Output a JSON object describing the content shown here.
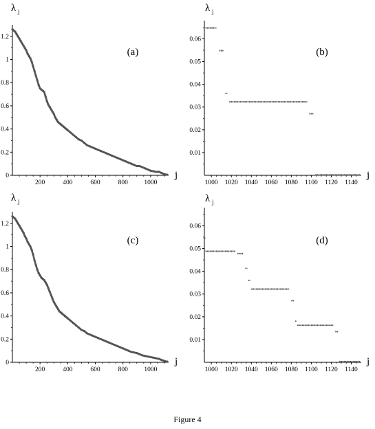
{
  "caption": "Figure 4",
  "chart_data": [
    {
      "type": "scatter",
      "label": "(a)",
      "xlabel": "j",
      "ylabel": "λ",
      "ylabel_sub": "j",
      "xlim": [
        0,
        1130
      ],
      "ylim": [
        0,
        1.3
      ],
      "xticks": [
        200,
        400,
        600,
        800,
        1000
      ],
      "yticks": [
        0,
        0.2,
        0.4,
        0.6,
        0.8,
        1,
        1.2
      ],
      "x": [
        0,
        10,
        20,
        30,
        40,
        50,
        60,
        70,
        80,
        90,
        100,
        110,
        120,
        130,
        140,
        150,
        160,
        170,
        180,
        190,
        200,
        210,
        220,
        230,
        240,
        250,
        260,
        270,
        280,
        290,
        300,
        310,
        320,
        330,
        340,
        350,
        360,
        370,
        380,
        390,
        400,
        420,
        440,
        460,
        480,
        500,
        520,
        540,
        560,
        580,
        600,
        620,
        640,
        660,
        680,
        700,
        720,
        740,
        760,
        780,
        800,
        820,
        840,
        860,
        880,
        900,
        920,
        940,
        960,
        980,
        1000,
        1020,
        1040,
        1060,
        1080,
        1100,
        1120
      ],
      "y": [
        1.26,
        1.25,
        1.24,
        1.22,
        1.2,
        1.18,
        1.16,
        1.14,
        1.12,
        1.1,
        1.08,
        1.05,
        1.03,
        1.01,
        0.98,
        0.94,
        0.9,
        0.86,
        0.82,
        0.78,
        0.75,
        0.74,
        0.73,
        0.72,
        0.68,
        0.64,
        0.61,
        0.59,
        0.57,
        0.55,
        0.53,
        0.5,
        0.48,
        0.46,
        0.45,
        0.44,
        0.43,
        0.42,
        0.41,
        0.4,
        0.39,
        0.37,
        0.35,
        0.33,
        0.31,
        0.3,
        0.28,
        0.26,
        0.25,
        0.24,
        0.23,
        0.22,
        0.21,
        0.2,
        0.19,
        0.18,
        0.17,
        0.16,
        0.15,
        0.14,
        0.13,
        0.12,
        0.11,
        0.1,
        0.09,
        0.08,
        0.08,
        0.07,
        0.06,
        0.05,
        0.04,
        0.035,
        0.03,
        0.03,
        0.02,
        0.01,
        0.005
      ]
    },
    {
      "type": "scatter",
      "label": "(b)",
      "xlabel": "j",
      "ylabel": "λ",
      "ylabel_sub": "j",
      "xlim": [
        993,
        1150
      ],
      "ylim": [
        0,
        0.068
      ],
      "xticks": [
        1000,
        1020,
        1040,
        1060,
        1080,
        1100,
        1120,
        1140
      ],
      "yticks": [
        0.01,
        0.02,
        0.03,
        0.04,
        0.05,
        0.06
      ],
      "segments": [
        {
          "x0": 994,
          "x1": 1005,
          "y": 0.0648
        },
        {
          "x0": 1008,
          "x1": 1012,
          "y": 0.0548
        },
        {
          "x0": 1014,
          "x1": 1016,
          "y": 0.036
        },
        {
          "x0": 1018,
          "x1": 1096,
          "y": 0.0323
        },
        {
          "x0": 1098,
          "x1": 1102,
          "y": 0.0271
        },
        {
          "x0": 1104,
          "x1": 1149,
          "y": 0.0002
        }
      ]
    },
    {
      "type": "scatter",
      "label": "(c)",
      "xlabel": "j",
      "ylabel": "λ",
      "ylabel_sub": "j",
      "xlim": [
        0,
        1130
      ],
      "ylim": [
        0,
        1.3
      ],
      "xticks": [
        200,
        400,
        600,
        800,
        1000
      ],
      "yticks": [
        0,
        0.2,
        0.4,
        0.6,
        0.8,
        1,
        1.2
      ],
      "x": [
        0,
        10,
        20,
        30,
        40,
        50,
        60,
        70,
        80,
        90,
        100,
        110,
        120,
        130,
        140,
        150,
        160,
        170,
        180,
        190,
        200,
        210,
        220,
        230,
        240,
        250,
        260,
        270,
        280,
        290,
        300,
        310,
        320,
        330,
        340,
        350,
        360,
        370,
        380,
        390,
        400,
        420,
        440,
        460,
        480,
        500,
        520,
        540,
        560,
        580,
        600,
        620,
        640,
        660,
        680,
        700,
        720,
        740,
        760,
        780,
        800,
        820,
        840,
        860,
        880,
        900,
        920,
        940,
        960,
        980,
        1000,
        1020,
        1040,
        1060,
        1080,
        1100,
        1120
      ],
      "y": [
        1.26,
        1.25,
        1.24,
        1.22,
        1.2,
        1.18,
        1.16,
        1.14,
        1.12,
        1.09,
        1.07,
        1.04,
        1.02,
        1.0,
        0.97,
        0.93,
        0.88,
        0.84,
        0.8,
        0.77,
        0.75,
        0.73,
        0.72,
        0.71,
        0.69,
        0.67,
        0.64,
        0.61,
        0.58,
        0.55,
        0.52,
        0.5,
        0.48,
        0.46,
        0.44,
        0.43,
        0.42,
        0.41,
        0.4,
        0.39,
        0.38,
        0.36,
        0.34,
        0.32,
        0.3,
        0.28,
        0.27,
        0.25,
        0.24,
        0.23,
        0.22,
        0.21,
        0.2,
        0.19,
        0.18,
        0.17,
        0.16,
        0.15,
        0.14,
        0.13,
        0.12,
        0.11,
        0.1,
        0.09,
        0.085,
        0.08,
        0.07,
        0.06,
        0.055,
        0.05,
        0.045,
        0.04,
        0.035,
        0.03,
        0.02,
        0.012,
        0.005
      ]
    },
    {
      "type": "scatter",
      "label": "(d)",
      "xlabel": "j",
      "ylabel": "λ",
      "ylabel_sub": "j",
      "xlim": [
        993,
        1150
      ],
      "ylim": [
        0,
        0.068
      ],
      "xticks": [
        1000,
        1020,
        1040,
        1060,
        1080,
        1100,
        1120,
        1140
      ],
      "yticks": [
        0.01,
        0.02,
        0.03,
        0.04,
        0.05,
        0.06
      ],
      "segments": [
        {
          "x0": 993,
          "x1": 994,
          "y": 0.0545
        },
        {
          "x0": 994,
          "x1": 1024,
          "y": 0.0488
        },
        {
          "x0": 1026,
          "x1": 1032,
          "y": 0.0478
        },
        {
          "x0": 1034,
          "x1": 1036,
          "y": 0.0413
        },
        {
          "x0": 1037,
          "x1": 1039,
          "y": 0.036
        },
        {
          "x0": 1040,
          "x1": 1078,
          "y": 0.0322
        },
        {
          "x0": 1080,
          "x1": 1083,
          "y": 0.0271
        },
        {
          "x0": 1084,
          "x1": 1085,
          "y": 0.0181
        },
        {
          "x0": 1086,
          "x1": 1122,
          "y": 0.0163
        },
        {
          "x0": 1124,
          "x1": 1127,
          "y": 0.0135
        },
        {
          "x0": 1128,
          "x1": 1149,
          "y": 0.0003
        }
      ]
    }
  ]
}
